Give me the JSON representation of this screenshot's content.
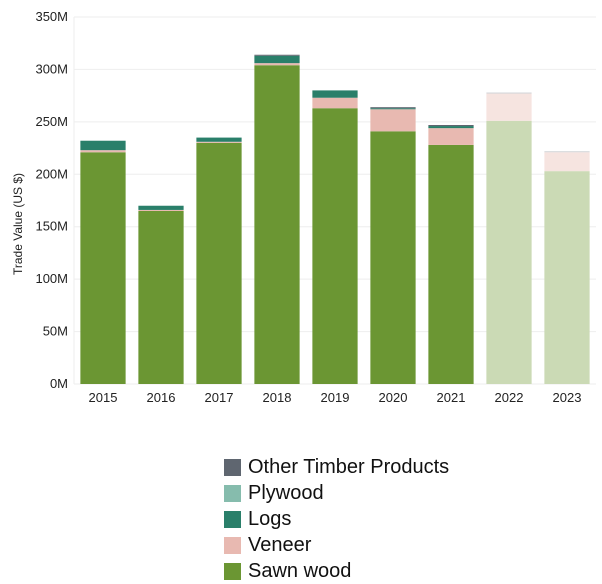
{
  "chart_data": {
    "type": "bar",
    "stacked": true,
    "ylabel": "Trade Value (US $)",
    "categories": [
      "2015",
      "2016",
      "2017",
      "2018",
      "2019",
      "2020",
      "2021",
      "2022",
      "2023"
    ],
    "ylim": [
      0,
      350000000
    ],
    "yticks": [
      0,
      50000000,
      100000000,
      150000000,
      200000000,
      250000000,
      300000000,
      350000000
    ],
    "ytick_labels": [
      "0M",
      "50M",
      "100M",
      "150M",
      "200M",
      "250M",
      "300M",
      "350M"
    ],
    "faded_categories": [
      "2022",
      "2023"
    ],
    "grid": true,
    "legend_position": "bottom",
    "series": [
      {
        "name": "Sawn wood",
        "color": "#6b9633",
        "faded_color": "#cbdab5",
        "values": [
          221000000,
          165000000,
          230000000,
          304000000,
          263000000,
          241000000,
          228000000,
          251000000,
          203000000
        ]
      },
      {
        "name": "Veneer",
        "color": "#e8b9b1",
        "faded_color": "#f6e4e0",
        "values": [
          2000000,
          1000000,
          1000000,
          2000000,
          10000000,
          21000000,
          16000000,
          26000000,
          18000000
        ]
      },
      {
        "name": "Logs",
        "color": "#2a7f6a",
        "faded_color": "#c6ddd7",
        "values": [
          9000000,
          4000000,
          4000000,
          7000000,
          7000000,
          1000000,
          2000000,
          0,
          0
        ]
      },
      {
        "name": "Plywood",
        "color": "#86bcad",
        "faded_color": "#d9eae5",
        "values": [
          0,
          0,
          0,
          0,
          0,
          0,
          0,
          0,
          0
        ]
      },
      {
        "name": "Other Timber Products",
        "color": "#5f6670",
        "faded_color": "#d3d5d8",
        "values": [
          0,
          0,
          0,
          1000000,
          0,
          1000000,
          1000000,
          1000000,
          1000000
        ]
      }
    ],
    "legend_order": [
      "Other Timber Products",
      "Plywood",
      "Logs",
      "Veneer",
      "Sawn wood"
    ]
  }
}
